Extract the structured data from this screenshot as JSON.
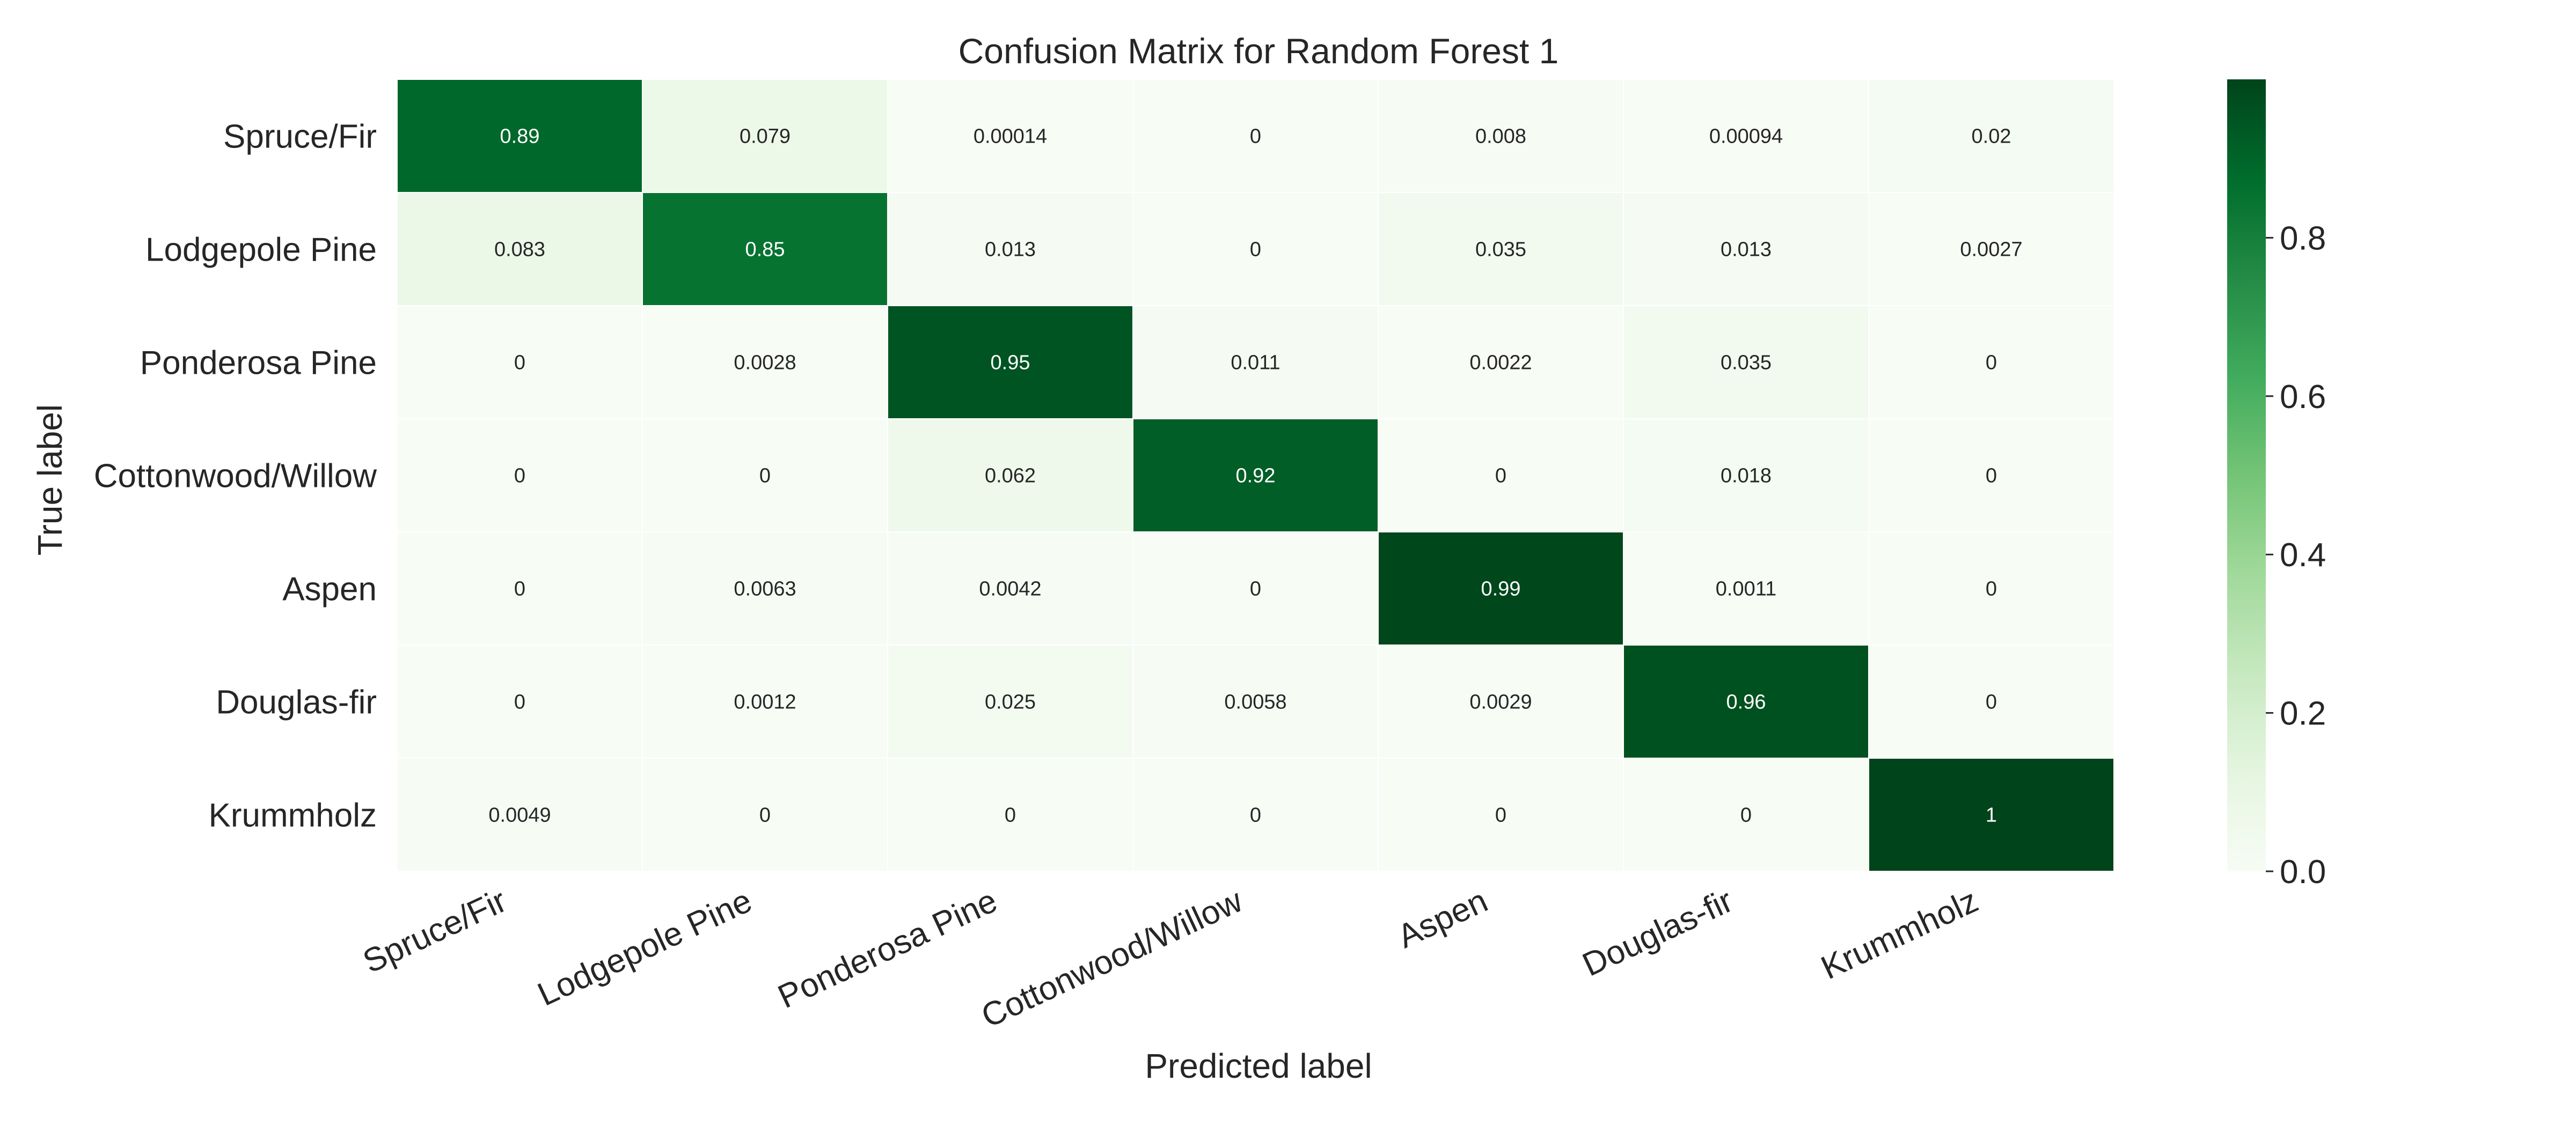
{
  "chart_data": {
    "type": "heatmap",
    "title": "Confusion Matrix for Random Forest 1",
    "xlabel": "Predicted label",
    "ylabel": "True label",
    "row_labels": [
      "Spruce/Fir",
      "Lodgepole Pine",
      "Ponderosa Pine",
      "Cottonwood/Willow",
      "Aspen",
      "Douglas-fir",
      "Krummholz"
    ],
    "col_labels": [
      "Spruce/Fir",
      "Lodgepole Pine",
      "Ponderosa Pine",
      "Cottonwood/Willow",
      "Aspen",
      "Douglas-fir",
      "Krummholz"
    ],
    "values": [
      [
        0.89,
        0.079,
        0.00014,
        0,
        0.008,
        0.00094,
        0.02
      ],
      [
        0.083,
        0.85,
        0.013,
        0,
        0.035,
        0.013,
        0.0027
      ],
      [
        0,
        0.0028,
        0.95,
        0.011,
        0.0022,
        0.035,
        0
      ],
      [
        0,
        0,
        0.062,
        0.92,
        0,
        0.018,
        0
      ],
      [
        0,
        0.0063,
        0.0042,
        0,
        0.99,
        0.0011,
        0
      ],
      [
        0,
        0.0012,
        0.025,
        0.0058,
        0.0029,
        0.96,
        0
      ],
      [
        0.0049,
        0,
        0,
        0,
        0,
        0,
        1
      ]
    ],
    "cell_labels": [
      [
        "0.89",
        "0.079",
        "0.00014",
        "0",
        "0.008",
        "0.00094",
        "0.02"
      ],
      [
        "0.083",
        "0.85",
        "0.013",
        "0",
        "0.035",
        "0.013",
        "0.0027"
      ],
      [
        "0",
        "0.0028",
        "0.95",
        "0.011",
        "0.0022",
        "0.035",
        "0"
      ],
      [
        "0",
        "0",
        "0.062",
        "0.92",
        "0",
        "0.018",
        "0"
      ],
      [
        "0",
        "0.0063",
        "0.0042",
        "0",
        "0.99",
        "0.0011",
        "0"
      ],
      [
        "0",
        "0.0012",
        "0.025",
        "0.0058",
        "0.0029",
        "0.96",
        "0"
      ],
      [
        "0.0049",
        "0",
        "0",
        "0",
        "0",
        "0",
        "1"
      ]
    ],
    "colorscale": "Greens",
    "colorscale_stops": [
      "#f7fcf5",
      "#e5f5e0",
      "#c7e9c0",
      "#a1d99b",
      "#74c476",
      "#41ab5d",
      "#238b45",
      "#006d2c",
      "#00441b"
    ],
    "value_range": [
      0,
      1
    ],
    "colorbar": {
      "ticks": [
        0.0,
        0.2,
        0.4,
        0.6,
        0.8
      ],
      "tick_labels": [
        "0.0",
        "0.2",
        "0.4",
        "0.6",
        "0.8"
      ]
    },
    "grid": false
  }
}
